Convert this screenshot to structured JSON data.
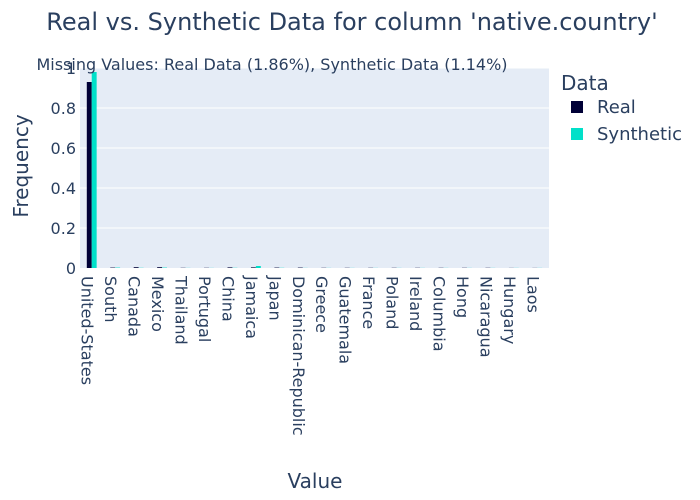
{
  "chart_data": {
    "type": "bar",
    "title": "Real vs. Synthetic Data for column 'native.country'",
    "subtitle": "Missing Values: Real Data (1.86%), Synthetic Data (1.14%)",
    "xlabel": "Value",
    "ylabel": "Frequency",
    "ylim": [
      0,
      1
    ],
    "y_ticks": [
      "0",
      "0.2",
      "0.4",
      "0.6",
      "0.8",
      "1"
    ],
    "categories": [
      "United-States",
      "South",
      "Canada",
      "Mexico",
      "Thailand",
      "Portugal",
      "China",
      "Jamaica",
      "Japan",
      "Dominican-Republic",
      "Greece",
      "Guatemala",
      "France",
      "Poland",
      "Ireland",
      "Columbia",
      "Hong",
      "Nicaragua",
      "Hungary",
      "Laos"
    ],
    "series": [
      {
        "name": "Real",
        "color": "#000036",
        "values": [
          0.93,
          0.002,
          0.004,
          0.004,
          0.001,
          0.001,
          0.003,
          0.003,
          0.002,
          0.002,
          0.001,
          0.001,
          0.001,
          0.001,
          0.001,
          0.001,
          0.001,
          0.001,
          0.0005,
          0.0005
        ]
      },
      {
        "name": "Synthetic",
        "color": "#01e0c9",
        "values": [
          0.98,
          0.002,
          0.001,
          0.002,
          0.0005,
          0.0005,
          0.001,
          0.01,
          0.001,
          0.0005,
          0.0005,
          0.0005,
          0.0005,
          0.0005,
          0.0005,
          0.0005,
          0.0005,
          0.0005,
          0.0005,
          0.0005
        ]
      }
    ],
    "legend_title": "Data",
    "legend_position": "right",
    "grid": true,
    "plot_bgcolor": "#e5ecf6"
  }
}
